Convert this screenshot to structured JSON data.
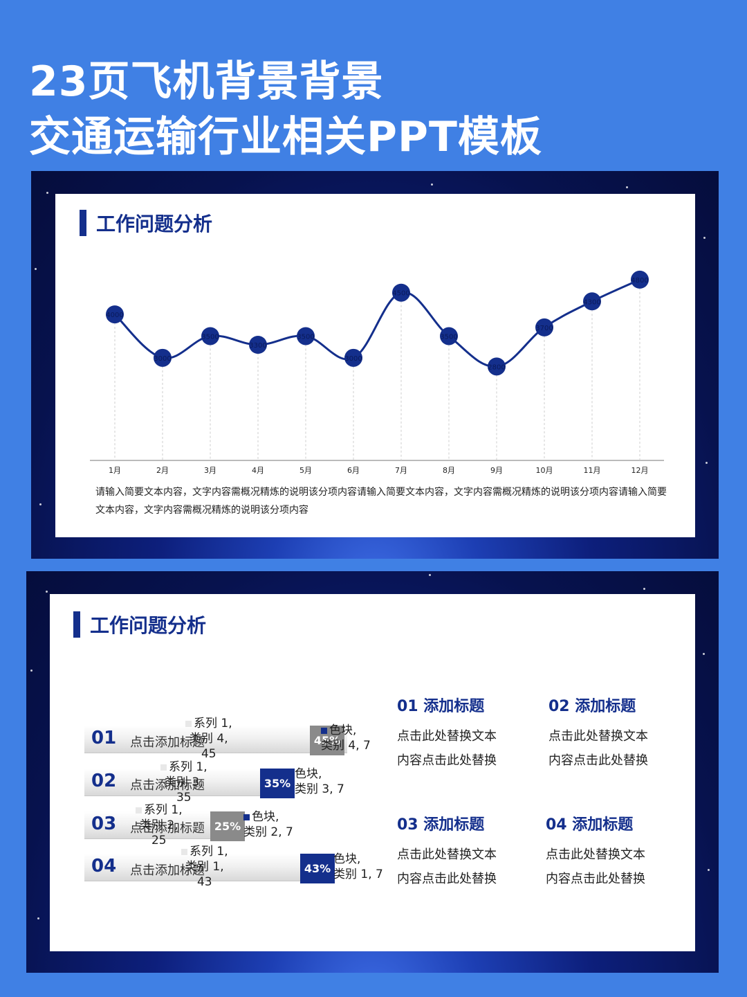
{
  "hero": {
    "line1": "23页飞机背景背景",
    "line2": "交通运输行业相关PPT模板"
  },
  "slide1": {
    "title": "工作问题分析",
    "description": "请输入简要文本内容，文字内容需概况精炼的说明该分项内容请输入简要文本内容，文字内容需概况精炼的说明该分项内容请输入简要文本内容，文字内容需概况精炼的说明该分项内容"
  },
  "chart_data": {
    "type": "line",
    "categories": [
      "1月",
      "2月",
      "3月",
      "4月",
      "5月",
      "6月",
      "7月",
      "8月",
      "9月",
      "10月",
      "11月",
      "12月"
    ],
    "values": [
      4000,
      3000,
      3500,
      3300,
      3500,
      3000,
      4500,
      3500,
      2800,
      3700,
      4300,
      4800
    ],
    "ylim": [
      0,
      5500
    ],
    "grid": false,
    "line_color": "#142f8c",
    "marker_color": "#142f8c"
  },
  "slide2": {
    "title": "工作问题分析",
    "rows": [
      {
        "num": "01",
        "label": "点击添加标题",
        "percent": "45%",
        "value": 45,
        "series_label": "系列 1,",
        "category_label": "类别 4,",
        "block_series": "色块,",
        "block_category": "类别 4, 7",
        "block_color": "grey"
      },
      {
        "num": "02",
        "label": "点击添加标题",
        "percent": "35%",
        "value": 35,
        "series_label": "系列 1,",
        "category_label": "类别 3,",
        "block_series": "色块,",
        "block_category": "类别 3, 7",
        "block_color": "dark"
      },
      {
        "num": "03",
        "label": "点击添加标题",
        "percent": "25%",
        "value": 25,
        "series_label": "系列 1,",
        "category_label": "类别 2,",
        "block_series": "色块,",
        "block_category": "类别 2, 7",
        "block_color": "grey"
      },
      {
        "num": "04",
        "label": "点击添加标题",
        "percent": "43%",
        "value": 43,
        "series_label": "系列 1,",
        "category_label": "类别 1,",
        "block_series": "色块,",
        "block_category": "类别 1, 7",
        "block_color": "dark"
      }
    ],
    "info": [
      {
        "title": "01 添加标题",
        "line1": "点击此处替换文本",
        "line2": "内容点击此处替换"
      },
      {
        "title": "02 添加标题",
        "line1": "点击此处替换文本",
        "line2": "内容点击此处替换"
      },
      {
        "title": "03 添加标题",
        "line1": "点击此处替换文本",
        "line2": "内容点击此处替换"
      },
      {
        "title": "04 添加标题",
        "line1": "点击此处替换文本",
        "line2": "内容点击此处替换"
      }
    ]
  }
}
